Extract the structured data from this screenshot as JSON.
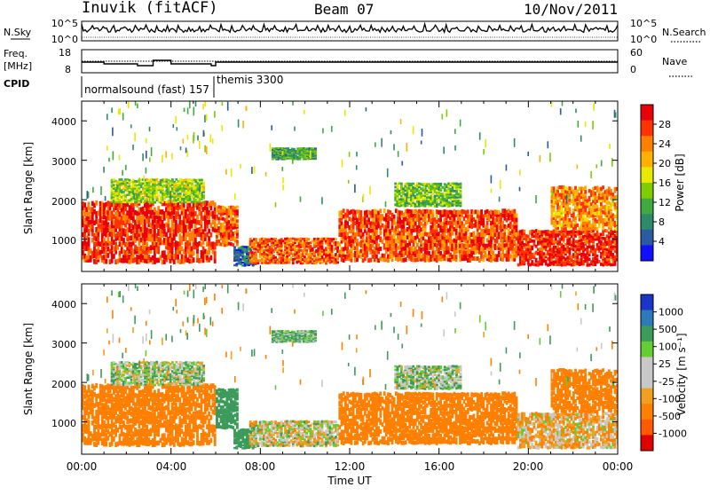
{
  "header": {
    "station": "Inuvik (fitACF)",
    "beam": "Beam 07",
    "date": "10/Nov/2011"
  },
  "top_panel": {
    "nsky_label": "N.Sky",
    "nsearch_label": "N.Search",
    "freq_label_line1": "Freq.",
    "freq_label_line2": "[MHz]",
    "nave_label": "Nave",
    "cpid_label": "CPID",
    "left_ticks_noise": [
      "10^5",
      "10^0"
    ],
    "right_ticks_noise": [
      "10^5",
      "10^0"
    ],
    "left_ticks_freq": [
      "18",
      "8"
    ],
    "right_ticks_nave": [
      "60",
      "0"
    ],
    "cpid_names": [
      "normalsound (fast) 157",
      "themis 3300"
    ]
  },
  "xaxis": {
    "label": "Time UT",
    "ticks": [
      "00:00",
      "04:00",
      "08:00",
      "12:00",
      "16:00",
      "20:00",
      "00:00"
    ]
  },
  "power_panel": {
    "ylabel": "Slant Range [km]",
    "yticks": [
      "1000",
      "2000",
      "3000",
      "4000"
    ],
    "cbar_label": "Power [dB]",
    "cbar_ticks": [
      "28",
      "24",
      "20",
      "16",
      "12",
      "8",
      "4"
    ],
    "cbar_colors": [
      "#e8000b",
      "#ff3300",
      "#ff8000",
      "#ffb000",
      "#e8e800",
      "#80cc00",
      "#3faa3f",
      "#2f8a6a",
      "#2a5aa0",
      "#1010ff"
    ]
  },
  "velocity_panel": {
    "ylabel": "Slant Range [km]",
    "yticks": [
      "1000",
      "2000",
      "3000",
      "4000"
    ],
    "cbar_label": "Velocity [m s⁻¹]",
    "cbar_ticks": [
      "1000",
      "500",
      "100",
      "25",
      "-25",
      "-100",
      "-500",
      "-1000"
    ],
    "cbar_colors": [
      "#1a36c8",
      "#2e7ab8",
      "#3c9a5a",
      "#66cc33",
      "#c8c8c8",
      "#c8c8c8",
      "#f0a020",
      "#ff8000",
      "#ff5a00",
      "#e00000"
    ]
  },
  "chart_data": {
    "type": "heatmap",
    "title": "Inuvik (fitACF)  Beam 07  10/Nov/2011",
    "x_unit": "hours UT",
    "xlabel": "Time UT",
    "ylabel": "Slant Range [km]",
    "xlim": [
      0,
      24
    ],
    "ylim": [
      180,
      4500
    ],
    "power_scale_dB": [
      0,
      30
    ],
    "velocity_scale_ms": [
      -1000,
      1000
    ],
    "echo_regions": [
      {
        "t": [
          0.0,
          6.0
        ],
        "range_km": [
          350,
          1900
        ],
        "power_dB": 26,
        "velocity_ms": -150
      },
      {
        "t": [
          1.3,
          5.5
        ],
        "range_km": [
          1900,
          2500
        ],
        "power_dB": 14,
        "velocity_ms": 20
      },
      {
        "t": [
          6.0,
          7.0
        ],
        "range_km": [
          800,
          1800
        ],
        "power_dB": 24,
        "velocity_ms": 150
      },
      {
        "t": [
          6.8,
          7.8
        ],
        "range_km": [
          300,
          800
        ],
        "power_dB": 6,
        "velocity_ms": 200
      },
      {
        "t": [
          7.5,
          11.5
        ],
        "range_km": [
          350,
          1000
        ],
        "power_dB": 24,
        "velocity_ms": 0
      },
      {
        "t": [
          8.5,
          10.5
        ],
        "range_km": [
          3000,
          3300
        ],
        "power_dB": 10,
        "velocity_ms": 60
      },
      {
        "t": [
          11.5,
          19.5
        ],
        "range_km": [
          400,
          1700
        ],
        "power_dB": 25,
        "velocity_ms": -160
      },
      {
        "t": [
          14.0,
          17.0
        ],
        "range_km": [
          1800,
          2400
        ],
        "power_dB": 12,
        "velocity_ms": 30
      },
      {
        "t": [
          19.5,
          24.0
        ],
        "range_km": [
          300,
          1200
        ],
        "power_dB": 27,
        "velocity_ms": -40
      },
      {
        "t": [
          21.0,
          24.0
        ],
        "range_km": [
          1200,
          2300
        ],
        "power_dB": 22,
        "velocity_ms": -200
      }
    ]
  }
}
